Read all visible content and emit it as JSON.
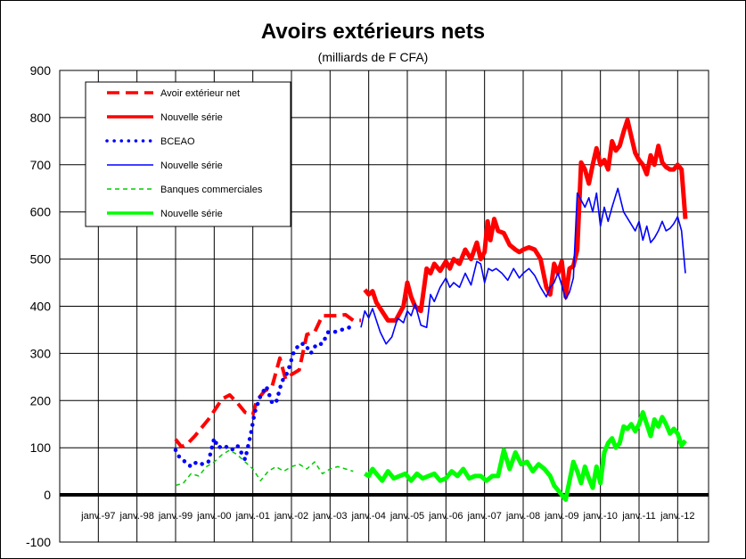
{
  "chart_data": {
    "type": "line",
    "title": "Avoirs extérieurs nets",
    "subtitle": "(milliards de F CFA)",
    "ylim": [
      -100,
      900
    ],
    "yticks": [
      -100,
      0,
      100,
      200,
      300,
      400,
      500,
      600,
      700,
      800,
      900
    ],
    "xlim": [
      1996,
      2012.8
    ],
    "x_tick_labels": [
      "janv.-97",
      "janv.-98",
      "janv.-99",
      "janv.-00",
      "janv.-01",
      "janv.-02",
      "janv.-03",
      "janv.-04",
      "janv.-05",
      "janv.-06",
      "janv.-07",
      "janv.-08",
      "janv.-09",
      "janv.-10",
      "janv.-11",
      "janv.-12"
    ],
    "x_tick_years": [
      1997,
      1998,
      1999,
      2000,
      2001,
      2002,
      2003,
      2004,
      2005,
      2006,
      2007,
      2008,
      2009,
      2010,
      2011,
      2012
    ],
    "grid": true,
    "legend_position": "top-left",
    "series": [
      {
        "name": "Avoir extérieur net",
        "color": "#ff0000",
        "style": "dashed",
        "x": [
          1999.0,
          1999.15,
          1999.3,
          1999.5,
          1999.7,
          1999.85,
          2000.0,
          2000.2,
          2000.4,
          2000.6,
          2000.8,
          2001.0,
          2001.1,
          2001.3,
          2001.5,
          2001.7,
          2001.85,
          2002.0,
          2002.2,
          2002.4,
          2002.6,
          2002.8,
          2003.0,
          2003.2,
          2003.4,
          2003.6,
          2003.8
        ],
        "y": [
          118,
          102,
          108,
          125,
          145,
          160,
          178,
          203,
          212,
          195,
          175,
          170,
          200,
          220,
          230,
          290,
          245,
          255,
          265,
          340,
          345,
          380,
          380,
          380,
          382,
          370,
          370
        ]
      },
      {
        "name": "Nouvelle série",
        "color": "#ff0000",
        "style": "solid-thick",
        "x": [
          2003.9,
          2004.0,
          2004.1,
          2004.2,
          2004.3,
          2004.5,
          2004.7,
          2004.9,
          2005.0,
          2005.1,
          2005.2,
          2005.35,
          2005.5,
          2005.6,
          2005.7,
          2005.85,
          2006.0,
          2006.1,
          2006.2,
          2006.35,
          2006.5,
          2006.65,
          2006.8,
          2006.9,
          2007.0,
          2007.08,
          2007.15,
          2007.25,
          2007.35,
          2007.5,
          2007.65,
          2007.8,
          2007.9,
          2008.0,
          2008.15,
          2008.3,
          2008.45,
          2008.6,
          2008.7,
          2008.8,
          2008.9,
          2009.0,
          2009.1,
          2009.2,
          2009.3,
          2009.4,
          2009.5,
          2009.6,
          2009.7,
          2009.8,
          2009.9,
          2010.0,
          2010.1,
          2010.2,
          2010.3,
          2010.4,
          2010.5,
          2010.6,
          2010.7,
          2010.8,
          2010.9,
          2011.0,
          2011.1,
          2011.2,
          2011.3,
          2011.4,
          2011.5,
          2011.6,
          2011.7,
          2011.8,
          2011.9,
          2012.0,
          2012.1,
          2012.2
        ],
        "y": [
          435,
          425,
          432,
          408,
          395,
          370,
          370,
          400,
          450,
          420,
          400,
          390,
          480,
          470,
          490,
          475,
          495,
          480,
          500,
          490,
          520,
          500,
          535,
          500,
          515,
          580,
          540,
          585,
          560,
          555,
          530,
          520,
          515,
          520,
          525,
          520,
          500,
          440,
          425,
          490,
          470,
          495,
          420,
          480,
          485,
          520,
          705,
          690,
          660,
          700,
          735,
          700,
          710,
          690,
          750,
          730,
          740,
          770,
          795,
          760,
          725,
          710,
          700,
          680,
          720,
          700,
          740,
          705,
          695,
          690,
          690,
          700,
          690,
          585
        ]
      },
      {
        "name": "BCEAO",
        "color": "#0000ff",
        "style": "dotted",
        "x": [
          1999.0,
          1999.1,
          1999.25,
          1999.4,
          1999.55,
          1999.7,
          1999.85,
          2000.0,
          2000.1,
          2000.25,
          2000.45,
          2000.6,
          2000.8,
          2000.95,
          2001.05,
          2001.2,
          2001.35,
          2001.5,
          2001.6,
          2001.75,
          2001.9,
          2002.05,
          2002.2,
          2002.35,
          2002.5,
          2002.65,
          2002.8,
          2002.95,
          2003.1,
          2003.3,
          2003.5,
          2003.65
        ],
        "y": [
          95,
          80,
          70,
          60,
          70,
          65,
          70,
          120,
          100,
          105,
          95,
          105,
          75,
          130,
          175,
          210,
          230,
          195,
          195,
          240,
          260,
          300,
          320,
          320,
          300,
          320,
          320,
          345,
          345,
          350,
          355,
          360
        ]
      },
      {
        "name": "Nouvelle série",
        "color": "#0000ff",
        "style": "solid",
        "x": [
          2003.8,
          2003.9,
          2004.0,
          2004.1,
          2004.2,
          2004.3,
          2004.45,
          2004.6,
          2004.75,
          2004.9,
          2005.0,
          2005.1,
          2005.2,
          2005.35,
          2005.5,
          2005.6,
          2005.7,
          2005.85,
          2006.0,
          2006.1,
          2006.2,
          2006.35,
          2006.5,
          2006.65,
          2006.8,
          2006.9,
          2007.0,
          2007.1,
          2007.2,
          2007.3,
          2007.45,
          2007.6,
          2007.75,
          2007.9,
          2008.0,
          2008.15,
          2008.3,
          2008.45,
          2008.6,
          2008.7,
          2008.8,
          2008.9,
          2009.0,
          2009.1,
          2009.2,
          2009.3,
          2009.4,
          2009.5,
          2009.6,
          2009.7,
          2009.8,
          2009.9,
          2010.0,
          2010.1,
          2010.2,
          2010.3,
          2010.45,
          2010.6,
          2010.75,
          2010.9,
          2011.0,
          2011.1,
          2011.2,
          2011.3,
          2011.4,
          2011.5,
          2011.6,
          2011.7,
          2011.8,
          2011.9,
          2012.0,
          2012.1,
          2012.2
        ],
        "y": [
          355,
          390,
          375,
          395,
          370,
          345,
          320,
          335,
          375,
          365,
          390,
          380,
          405,
          360,
          355,
          425,
          410,
          440,
          460,
          440,
          450,
          440,
          470,
          445,
          495,
          490,
          450,
          480,
          475,
          480,
          470,
          455,
          480,
          460,
          470,
          480,
          465,
          440,
          420,
          440,
          450,
          470,
          445,
          415,
          430,
          460,
          640,
          625,
          610,
          630,
          600,
          640,
          570,
          610,
          580,
          610,
          650,
          600,
          580,
          560,
          580,
          540,
          570,
          535,
          545,
          560,
          580,
          560,
          565,
          575,
          590,
          560,
          470
        ]
      },
      {
        "name": "Banques commerciales",
        "color": "#00cc00",
        "style": "dashed-thin",
        "x": [
          1999.0,
          1999.2,
          1999.4,
          1999.6,
          1999.8,
          2000.0,
          2000.2,
          2000.4,
          2000.6,
          2000.8,
          2001.0,
          2001.2,
          2001.4,
          2001.6,
          2001.8,
          2002.0,
          2002.2,
          2002.4,
          2002.6,
          2002.8,
          2003.0,
          2003.2,
          2003.4,
          2003.6
        ],
        "y": [
          20,
          25,
          45,
          40,
          60,
          70,
          85,
          95,
          85,
          70,
          55,
          30,
          50,
          60,
          50,
          60,
          65,
          55,
          70,
          45,
          55,
          60,
          55,
          50
        ]
      },
      {
        "name": "Nouvelle série",
        "color": "#00ff00",
        "style": "solid-thick",
        "x": [
          2003.9,
          2004.0,
          2004.1,
          2004.2,
          2004.35,
          2004.5,
          2004.65,
          2004.8,
          2004.95,
          2005.1,
          2005.25,
          2005.4,
          2005.55,
          2005.7,
          2005.85,
          2006.0,
          2006.15,
          2006.3,
          2006.45,
          2006.6,
          2006.75,
          2006.9,
          2007.05,
          2007.2,
          2007.35,
          2007.5,
          2007.65,
          2007.8,
          2007.95,
          2008.1,
          2008.25,
          2008.4,
          2008.55,
          2008.7,
          2008.8,
          2008.9,
          2009.0,
          2009.1,
          2009.2,
          2009.3,
          2009.4,
          2009.5,
          2009.6,
          2009.7,
          2009.8,
          2009.9,
          2010.0,
          2010.1,
          2010.2,
          2010.3,
          2010.4,
          2010.5,
          2010.6,
          2010.7,
          2010.8,
          2010.9,
          2011.0,
          2011.1,
          2011.2,
          2011.3,
          2011.4,
          2011.5,
          2011.6,
          2011.7,
          2011.8,
          2011.9,
          2012.0,
          2012.1,
          2012.2
        ],
        "y": [
          45,
          40,
          55,
          45,
          30,
          50,
          35,
          40,
          45,
          30,
          45,
          35,
          40,
          45,
          30,
          35,
          50,
          40,
          55,
          35,
          40,
          40,
          30,
          40,
          40,
          95,
          55,
          90,
          65,
          70,
          50,
          65,
          55,
          40,
          20,
          10,
          0,
          -10,
          30,
          70,
          50,
          25,
          60,
          35,
          15,
          60,
          25,
          90,
          110,
          120,
          100,
          110,
          145,
          140,
          150,
          135,
          150,
          175,
          150,
          125,
          160,
          145,
          165,
          150,
          130,
          140,
          130,
          105,
          115
        ]
      }
    ]
  }
}
